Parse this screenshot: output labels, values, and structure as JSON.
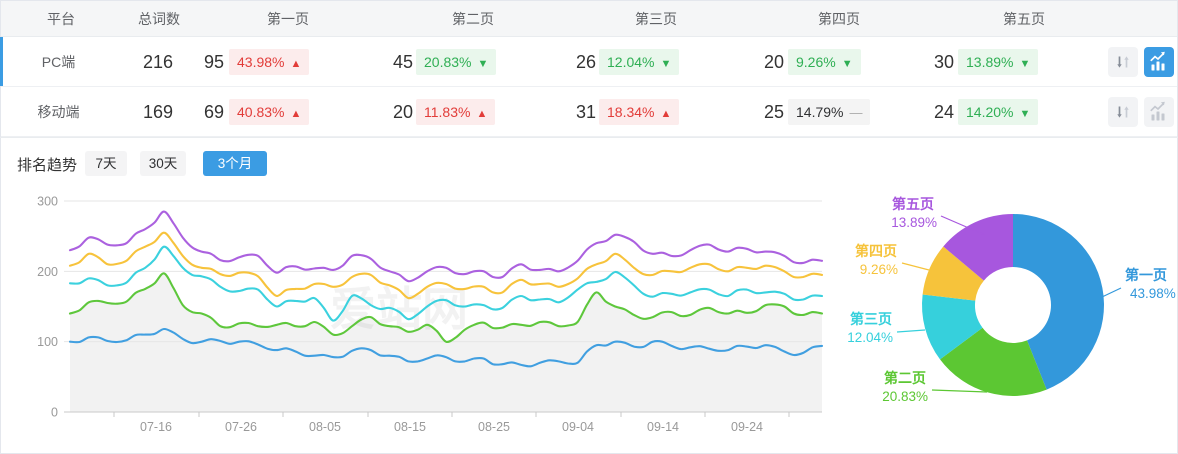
{
  "table": {
    "headers": [
      "平台",
      "总词数",
      "第一页",
      "第二页",
      "第三页",
      "第四页",
      "第五页"
    ],
    "rows": [
      {
        "platform": "PC端",
        "total": "216",
        "active": true,
        "pages": [
          {
            "count": "95",
            "pct": "43.98%",
            "dir": "up"
          },
          {
            "count": "45",
            "pct": "20.83%",
            "dir": "down"
          },
          {
            "count": "26",
            "pct": "12.04%",
            "dir": "down"
          },
          {
            "count": "20",
            "pct": "9.26%",
            "dir": "down"
          },
          {
            "count": "30",
            "pct": "13.89%",
            "dir": "down"
          }
        ]
      },
      {
        "platform": "移动端",
        "total": "169",
        "active": false,
        "pages": [
          {
            "count": "69",
            "pct": "40.83%",
            "dir": "up"
          },
          {
            "count": "20",
            "pct": "11.83%",
            "dir": "up"
          },
          {
            "count": "31",
            "pct": "18.34%",
            "dir": "up"
          },
          {
            "count": "25",
            "pct": "14.79%",
            "dir": "flat"
          },
          {
            "count": "24",
            "pct": "14.20%",
            "dir": "down"
          }
        ]
      }
    ]
  },
  "trend": {
    "title": "排名趋势",
    "ranges": [
      {
        "label": "7天",
        "active": false
      },
      {
        "label": "30天",
        "active": false
      },
      {
        "label": "3个月",
        "active": true
      }
    ],
    "watermark": "爱站网"
  },
  "colors": {
    "accent_blue": "#3b9ce3",
    "up_red": "#e23c39",
    "down_green": "#2faf54",
    "series": [
      "#419fe0",
      "#5ec73c",
      "#3bd1de",
      "#f7c33c",
      "#ab61df"
    ]
  },
  "chart_data": [
    {
      "type": "line",
      "x_ticks": [
        "07-16",
        "07-26",
        "08-05",
        "08-15",
        "08-25",
        "09-04",
        "09-14",
        "09-24"
      ],
      "ylabel": "",
      "ylim": [
        0,
        300
      ],
      "y_ticks": [
        0,
        100,
        200,
        300
      ],
      "grid": true,
      "area_series": "第二页",
      "series": [
        {
          "name": "第一页",
          "color": "#419fe0",
          "values": [
            100,
            106,
            101,
            102,
            110,
            118,
            104,
            100,
            101,
            100,
            96,
            88,
            86,
            80,
            78,
            87,
            88,
            80,
            72,
            76,
            78,
            72,
            76,
            68,
            67,
            70,
            72,
            70,
            95,
            100,
            93,
            100,
            94,
            92,
            90,
            88,
            93,
            95,
            86,
            84,
            94
          ]
        },
        {
          "name": "第二页",
          "color": "#5ec73c",
          "values": [
            140,
            156,
            155,
            157,
            175,
            197,
            152,
            140,
            122,
            126,
            122,
            124,
            122,
            128,
            110,
            122,
            135,
            122,
            114,
            124,
            100,
            117,
            127,
            120,
            124,
            128,
            122,
            128,
            170,
            150,
            138,
            135,
            142,
            138,
            148,
            140,
            141,
            152,
            150,
            138,
            140
          ]
        },
        {
          "name": "第三页",
          "color": "#3bd1de",
          "values": [
            183,
            190,
            180,
            184,
            205,
            235,
            205,
            193,
            178,
            172,
            174,
            150,
            158,
            162,
            130,
            165,
            152,
            148,
            132,
            150,
            159,
            150,
            152,
            148,
            165,
            160,
            156,
            174,
            185,
            199,
            180,
            164,
            168,
            170,
            174,
            165,
            174,
            170,
            168,
            160,
            165
          ]
        },
        {
          "name": "第四页",
          "color": "#f7c33c",
          "values": [
            208,
            225,
            210,
            215,
            235,
            255,
            222,
            205,
            196,
            198,
            193,
            165,
            175,
            182,
            178,
            192,
            195,
            180,
            162,
            178,
            182,
            175,
            178,
            170,
            188,
            182,
            178,
            190,
            210,
            225,
            205,
            195,
            200,
            205,
            210,
            200,
            205,
            208,
            200,
            192,
            195
          ]
        },
        {
          "name": "第五页",
          "color": "#ab61df",
          "values": [
            230,
            248,
            238,
            240,
            260,
            285,
            248,
            228,
            216,
            220,
            222,
            198,
            207,
            204,
            202,
            222,
            218,
            200,
            186,
            200,
            205,
            196,
            200,
            192,
            210,
            202,
            200,
            215,
            240,
            252,
            242,
            225,
            222,
            230,
            238,
            228,
            232,
            228,
            222,
            212,
            215
          ]
        }
      ]
    },
    {
      "type": "pie",
      "donut": true,
      "slices": [
        {
          "label": "第一页",
          "value": 43.98,
          "pct": "43.98%",
          "color": "#3398db"
        },
        {
          "label": "第二页",
          "value": 20.83,
          "pct": "20.83%",
          "color": "#5cc733"
        },
        {
          "label": "第三页",
          "value": 12.04,
          "pct": "12.04%",
          "color": "#36d0dc"
        },
        {
          "label": "第四页",
          "value": 9.26,
          "pct": "9.26%",
          "color": "#f6c33b"
        },
        {
          "label": "第五页",
          "value": 13.89,
          "pct": "13.89%",
          "color": "#a757de"
        }
      ]
    }
  ]
}
